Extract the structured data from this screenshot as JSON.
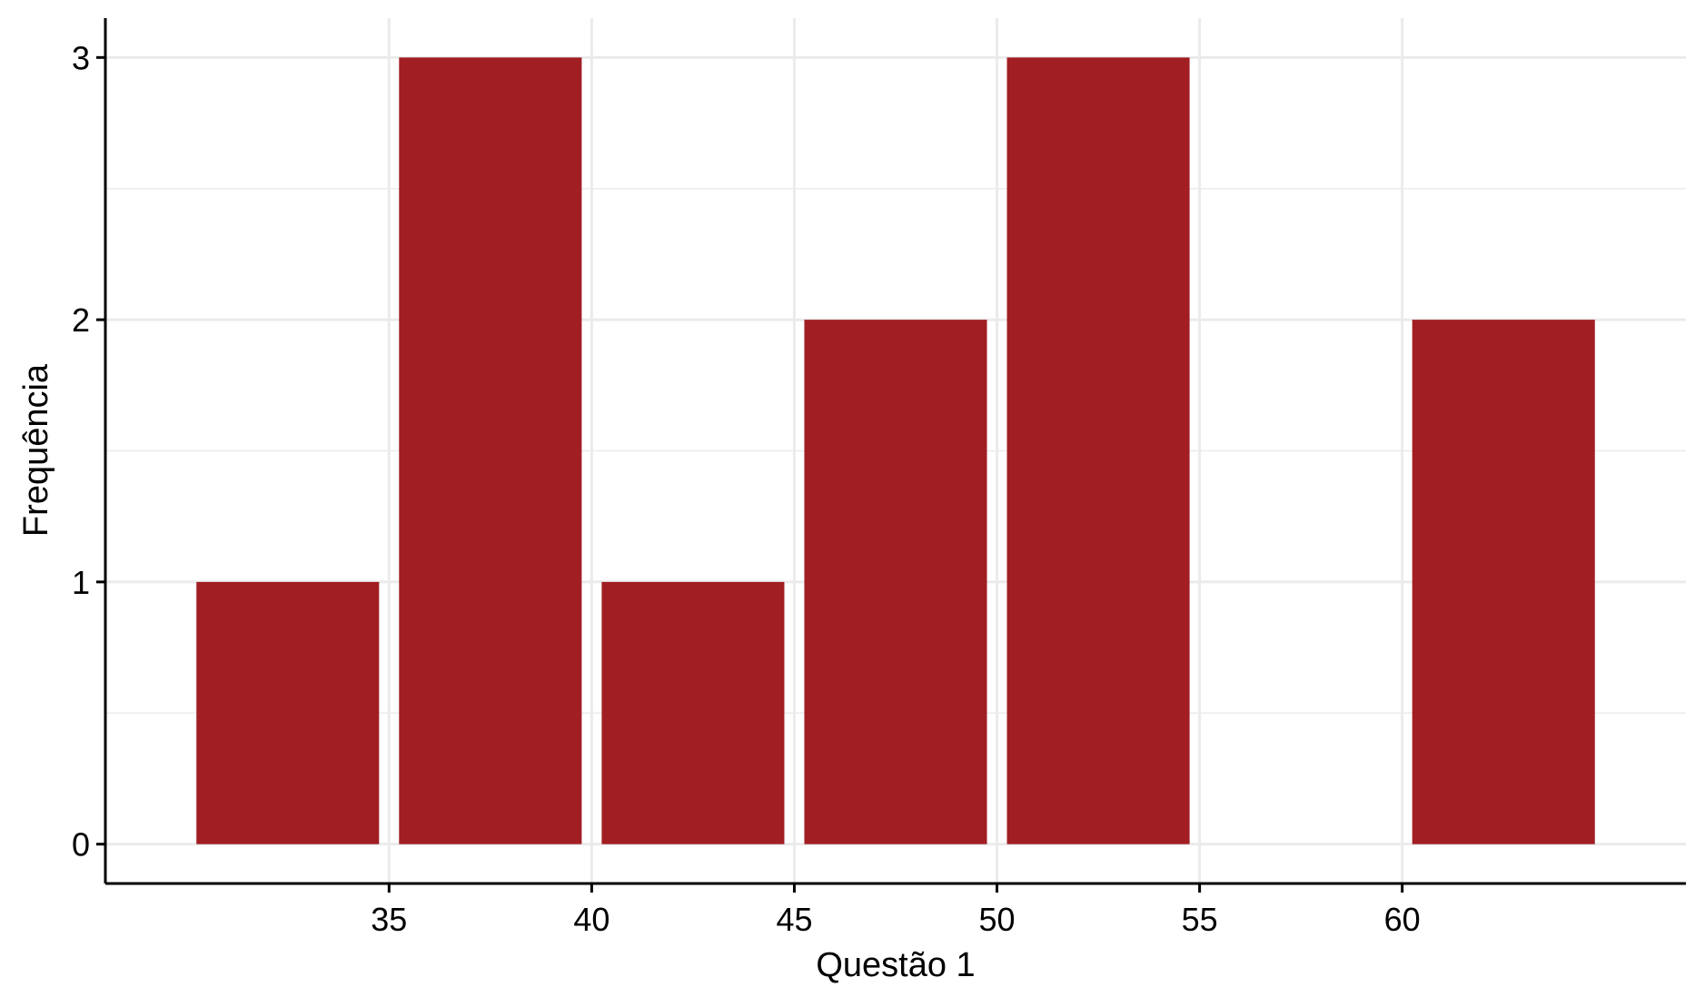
{
  "chart_data": {
    "type": "bar",
    "xlabel": "Questão 1",
    "ylabel": "Frequência",
    "bins": [
      {
        "x0": 30,
        "x1": 35,
        "count": 1
      },
      {
        "x0": 35,
        "x1": 40,
        "count": 3
      },
      {
        "x0": 40,
        "x1": 45,
        "count": 1
      },
      {
        "x0": 45,
        "x1": 50,
        "count": 2
      },
      {
        "x0": 50,
        "x1": 55,
        "count": 3
      },
      {
        "x0": 55,
        "x1": 60,
        "count": 0
      },
      {
        "x0": 60,
        "x1": 65,
        "count": 2
      }
    ],
    "xticks": [
      "35",
      "40",
      "45",
      "50",
      "55",
      "60"
    ],
    "yticks": [
      "0",
      "1",
      "2",
      "3"
    ],
    "xlim": [
      28,
      67
    ],
    "ylim": [
      -0.15,
      3.15
    ],
    "grid": true,
    "colors": {
      "bar": "#A11E23",
      "grid": "#EBEBEB",
      "axis": "#000000"
    }
  }
}
